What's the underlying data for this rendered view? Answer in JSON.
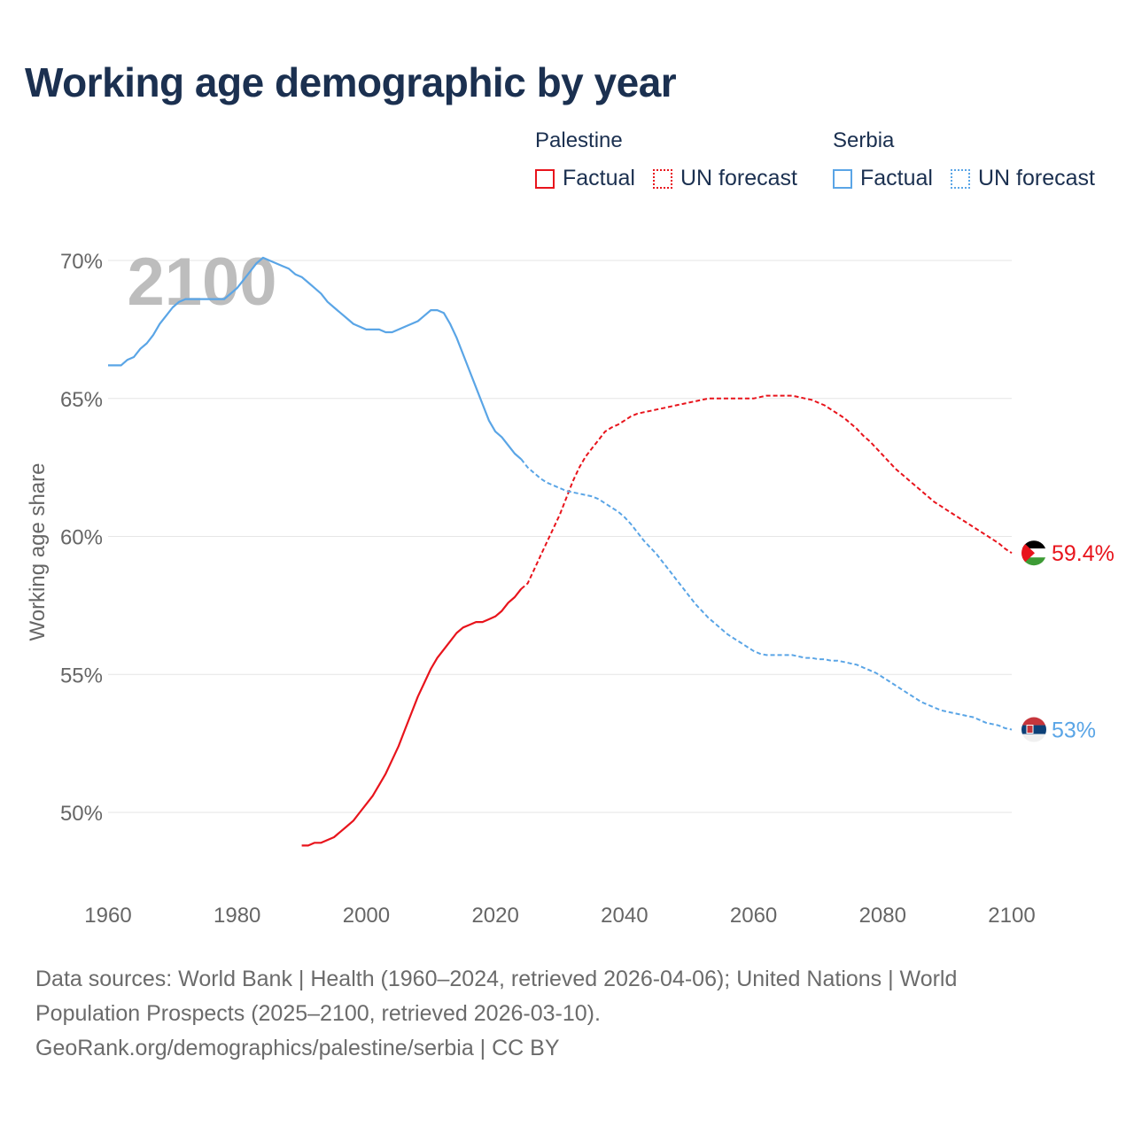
{
  "title": "Working age demographic by year",
  "legend": {
    "groups": [
      {
        "name": "Palestine",
        "color": "#e8141c",
        "items": [
          "Factual",
          "UN forecast"
        ]
      },
      {
        "name": "Serbia",
        "color": "#5aa5e6",
        "items": [
          "Factual",
          "UN forecast"
        ]
      }
    ]
  },
  "chart_data": {
    "type": "line",
    "title": "Working age demographic by year",
    "xlabel": "",
    "ylabel": "Working age share",
    "xlim": [
      1960,
      2100
    ],
    "ylim": [
      48,
      70.5
    ],
    "x_ticks": [
      1960,
      1980,
      2000,
      2020,
      2040,
      2060,
      2080,
      2100
    ],
    "y_ticks": [
      50,
      55,
      60,
      65,
      70
    ],
    "y_tick_labels": [
      "50%",
      "55%",
      "60%",
      "65%",
      "70%"
    ],
    "x_tick_labels": [
      "1960",
      "1980",
      "2000",
      "2020",
      "2040",
      "2060",
      "2080",
      "2100"
    ],
    "year_watermark": "2100",
    "forecast_start": 2024,
    "series": [
      {
        "name": "Palestine",
        "color": "#e8141c",
        "end_label": "59.4%",
        "flag": "palestine-flag",
        "points": [
          [
            1990,
            48.8
          ],
          [
            1991,
            48.8
          ],
          [
            1992,
            48.9
          ],
          [
            1993,
            48.9
          ],
          [
            1994,
            49.0
          ],
          [
            1995,
            49.1
          ],
          [
            1996,
            49.3
          ],
          [
            1997,
            49.5
          ],
          [
            1998,
            49.7
          ],
          [
            1999,
            50.0
          ],
          [
            2000,
            50.3
          ],
          [
            2001,
            50.6
          ],
          [
            2002,
            51.0
          ],
          [
            2003,
            51.4
          ],
          [
            2004,
            51.9
          ],
          [
            2005,
            52.4
          ],
          [
            2006,
            53.0
          ],
          [
            2007,
            53.6
          ],
          [
            2008,
            54.2
          ],
          [
            2009,
            54.7
          ],
          [
            2010,
            55.2
          ],
          [
            2011,
            55.6
          ],
          [
            2012,
            55.9
          ],
          [
            2013,
            56.2
          ],
          [
            2014,
            56.5
          ],
          [
            2015,
            56.7
          ],
          [
            2016,
            56.8
          ],
          [
            2017,
            56.9
          ],
          [
            2018,
            56.9
          ],
          [
            2019,
            57.0
          ],
          [
            2020,
            57.1
          ],
          [
            2021,
            57.3
          ],
          [
            2022,
            57.6
          ],
          [
            2023,
            57.8
          ],
          [
            2024,
            58.1
          ],
          [
            2025,
            58.3
          ],
          [
            2026,
            58.8
          ],
          [
            2027,
            59.3
          ],
          [
            2028,
            59.8
          ],
          [
            2029,
            60.3
          ],
          [
            2030,
            60.8
          ],
          [
            2031,
            61.4
          ],
          [
            2032,
            62.0
          ],
          [
            2033,
            62.5
          ],
          [
            2034,
            62.9
          ],
          [
            2035,
            63.2
          ],
          [
            2036,
            63.5
          ],
          [
            2037,
            63.8
          ],
          [
            2038,
            63.95
          ],
          [
            2039,
            64.05
          ],
          [
            2040,
            64.2
          ],
          [
            2041,
            64.35
          ],
          [
            2042,
            64.45
          ],
          [
            2043,
            64.5
          ],
          [
            2044,
            64.55
          ],
          [
            2045,
            64.6
          ],
          [
            2046,
            64.65
          ],
          [
            2047,
            64.7
          ],
          [
            2048,
            64.75
          ],
          [
            2049,
            64.8
          ],
          [
            2050,
            64.85
          ],
          [
            2051,
            64.9
          ],
          [
            2052,
            64.95
          ],
          [
            2053,
            65.0
          ],
          [
            2054,
            65.0
          ],
          [
            2055,
            65.0
          ],
          [
            2056,
            65.0
          ],
          [
            2057,
            65.0
          ],
          [
            2058,
            65.0
          ],
          [
            2059,
            65.0
          ],
          [
            2060,
            65.0
          ],
          [
            2061,
            65.05
          ],
          [
            2062,
            65.1
          ],
          [
            2063,
            65.1
          ],
          [
            2064,
            65.1
          ],
          [
            2065,
            65.1
          ],
          [
            2066,
            65.1
          ],
          [
            2067,
            65.05
          ],
          [
            2068,
            65.0
          ],
          [
            2069,
            64.95
          ],
          [
            2070,
            64.85
          ],
          [
            2071,
            64.75
          ],
          [
            2072,
            64.6
          ],
          [
            2073,
            64.45
          ],
          [
            2074,
            64.3
          ],
          [
            2075,
            64.1
          ],
          [
            2076,
            63.9
          ],
          [
            2077,
            63.65
          ],
          [
            2078,
            63.45
          ],
          [
            2079,
            63.2
          ],
          [
            2080,
            62.95
          ],
          [
            2081,
            62.7
          ],
          [
            2082,
            62.45
          ],
          [
            2083,
            62.25
          ],
          [
            2084,
            62.05
          ],
          [
            2085,
            61.85
          ],
          [
            2086,
            61.65
          ],
          [
            2087,
            61.45
          ],
          [
            2088,
            61.25
          ],
          [
            2089,
            61.1
          ],
          [
            2090,
            60.95
          ],
          [
            2091,
            60.8
          ],
          [
            2092,
            60.65
          ],
          [
            2093,
            60.5
          ],
          [
            2094,
            60.35
          ],
          [
            2095,
            60.2
          ],
          [
            2096,
            60.05
          ],
          [
            2097,
            59.9
          ],
          [
            2098,
            59.75
          ],
          [
            2099,
            59.55
          ],
          [
            2100,
            59.4
          ]
        ]
      },
      {
        "name": "Serbia",
        "color": "#5aa5e6",
        "end_label": "53%",
        "flag": "serbia-flag",
        "points": [
          [
            1960,
            66.2
          ],
          [
            1961,
            66.2
          ],
          [
            1962,
            66.2
          ],
          [
            1963,
            66.4
          ],
          [
            1964,
            66.5
          ],
          [
            1965,
            66.8
          ],
          [
            1966,
            67.0
          ],
          [
            1967,
            67.3
          ],
          [
            1968,
            67.7
          ],
          [
            1969,
            68.0
          ],
          [
            1970,
            68.3
          ],
          [
            1971,
            68.5
          ],
          [
            1972,
            68.6
          ],
          [
            1973,
            68.6
          ],
          [
            1974,
            68.6
          ],
          [
            1975,
            68.6
          ],
          [
            1976,
            68.6
          ],
          [
            1977,
            68.6
          ],
          [
            1978,
            68.6
          ],
          [
            1979,
            68.8
          ],
          [
            1980,
            69.0
          ],
          [
            1981,
            69.3
          ],
          [
            1982,
            69.6
          ],
          [
            1983,
            69.9
          ],
          [
            1984,
            70.1
          ],
          [
            1985,
            70.0
          ],
          [
            1986,
            69.9
          ],
          [
            1987,
            69.8
          ],
          [
            1988,
            69.7
          ],
          [
            1989,
            69.5
          ],
          [
            1990,
            69.4
          ],
          [
            1991,
            69.2
          ],
          [
            1992,
            69.0
          ],
          [
            1993,
            68.8
          ],
          [
            1994,
            68.5
          ],
          [
            1995,
            68.3
          ],
          [
            1996,
            68.1
          ],
          [
            1997,
            67.9
          ],
          [
            1998,
            67.7
          ],
          [
            1999,
            67.6
          ],
          [
            2000,
            67.5
          ],
          [
            2001,
            67.5
          ],
          [
            2002,
            67.5
          ],
          [
            2003,
            67.4
          ],
          [
            2004,
            67.4
          ],
          [
            2005,
            67.5
          ],
          [
            2006,
            67.6
          ],
          [
            2007,
            67.7
          ],
          [
            2008,
            67.8
          ],
          [
            2009,
            68.0
          ],
          [
            2010,
            68.2
          ],
          [
            2011,
            68.2
          ],
          [
            2012,
            68.1
          ],
          [
            2013,
            67.7
          ],
          [
            2014,
            67.2
          ],
          [
            2015,
            66.6
          ],
          [
            2016,
            66.0
          ],
          [
            2017,
            65.4
          ],
          [
            2018,
            64.8
          ],
          [
            2019,
            64.2
          ],
          [
            2020,
            63.8
          ],
          [
            2021,
            63.6
          ],
          [
            2022,
            63.3
          ],
          [
            2023,
            63.0
          ],
          [
            2024,
            62.8
          ],
          [
            2025,
            62.5
          ],
          [
            2026,
            62.3
          ],
          [
            2027,
            62.1
          ],
          [
            2028,
            61.95
          ],
          [
            2029,
            61.85
          ],
          [
            2030,
            61.75
          ],
          [
            2031,
            61.65
          ],
          [
            2032,
            61.6
          ],
          [
            2033,
            61.55
          ],
          [
            2034,
            61.5
          ],
          [
            2035,
            61.45
          ],
          [
            2036,
            61.35
          ],
          [
            2037,
            61.2
          ],
          [
            2038,
            61.05
          ],
          [
            2039,
            60.9
          ],
          [
            2040,
            60.7
          ],
          [
            2041,
            60.45
          ],
          [
            2042,
            60.15
          ],
          [
            2043,
            59.85
          ],
          [
            2044,
            59.6
          ],
          [
            2045,
            59.35
          ],
          [
            2046,
            59.05
          ],
          [
            2047,
            58.75
          ],
          [
            2048,
            58.45
          ],
          [
            2049,
            58.15
          ],
          [
            2050,
            57.85
          ],
          [
            2051,
            57.55
          ],
          [
            2052,
            57.3
          ],
          [
            2053,
            57.05
          ],
          [
            2054,
            56.85
          ],
          [
            2055,
            56.65
          ],
          [
            2056,
            56.45
          ],
          [
            2057,
            56.3
          ],
          [
            2058,
            56.15
          ],
          [
            2059,
            56.0
          ],
          [
            2060,
            55.85
          ],
          [
            2061,
            55.75
          ],
          [
            2062,
            55.7
          ],
          [
            2063,
            55.7
          ],
          [
            2064,
            55.7
          ],
          [
            2065,
            55.7
          ],
          [
            2066,
            55.7
          ],
          [
            2067,
            55.65
          ],
          [
            2068,
            55.6
          ],
          [
            2069,
            55.6
          ],
          [
            2070,
            55.55
          ],
          [
            2071,
            55.55
          ],
          [
            2072,
            55.5
          ],
          [
            2073,
            55.5
          ],
          [
            2074,
            55.45
          ],
          [
            2075,
            55.4
          ],
          [
            2076,
            55.35
          ],
          [
            2077,
            55.25
          ],
          [
            2078,
            55.15
          ],
          [
            2079,
            55.05
          ],
          [
            2080,
            54.9
          ],
          [
            2081,
            54.75
          ],
          [
            2082,
            54.6
          ],
          [
            2083,
            54.45
          ],
          [
            2084,
            54.3
          ],
          [
            2085,
            54.15
          ],
          [
            2086,
            54.0
          ],
          [
            2087,
            53.9
          ],
          [
            2088,
            53.8
          ],
          [
            2089,
            53.7
          ],
          [
            2090,
            53.65
          ],
          [
            2091,
            53.6
          ],
          [
            2092,
            53.55
          ],
          [
            2093,
            53.5
          ],
          [
            2094,
            53.45
          ],
          [
            2095,
            53.35
          ],
          [
            2096,
            53.25
          ],
          [
            2097,
            53.2
          ],
          [
            2098,
            53.15
          ],
          [
            2099,
            53.05
          ],
          [
            2100,
            53.0
          ]
        ]
      }
    ]
  },
  "source": {
    "line1": "Data sources: World Bank | Health (1960–2024, retrieved 2026-04-06); United Nations | World",
    "line2": "Population Prospects (2025–2100, retrieved 2026-03-10).",
    "line3": "GeoRank.org/demographics/palestine/serbia | CC BY"
  }
}
